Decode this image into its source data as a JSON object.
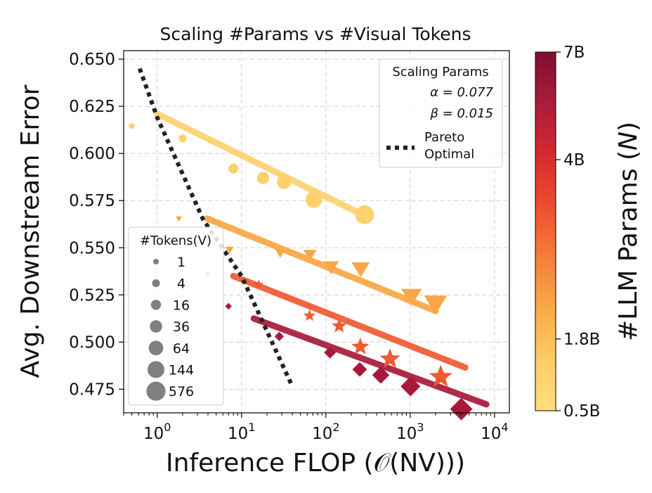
{
  "chart_data": {
    "type": "scatter",
    "title": "Scaling #Params vs #Visual Tokens",
    "xlabel": "Inference FLOP (𝒪(NV)))",
    "ylabel": "Avg. Downstream Error",
    "xscale": "log",
    "xlim": [
      0.4,
      15000
    ],
    "ylim": [
      0.4625,
      0.6545
    ],
    "yticks": [
      0.475,
      0.5,
      0.525,
      0.55,
      0.575,
      0.6,
      0.625,
      0.65
    ],
    "ytick_labels": [
      "0.475",
      "0.500",
      "0.525",
      "0.550",
      "0.575",
      "0.600",
      "0.625",
      "0.650"
    ],
    "xticks": [
      1,
      10,
      100,
      1000,
      10000
    ],
    "xtick_labels": [
      {
        "base": "10",
        "exp": "0"
      },
      {
        "base": "10",
        "exp": "1"
      },
      {
        "base": "10",
        "exp": "2"
      },
      {
        "base": "10",
        "exp": "3"
      },
      {
        "base": "10",
        "exp": "4"
      }
    ],
    "grid": true,
    "series": [
      {
        "name": "0.5B",
        "params_b": 0.5,
        "color": "#FDD16E",
        "marker": "circle",
        "points": [
          [
            0.5,
            0.6145
          ],
          [
            2,
            0.608
          ],
          [
            8,
            0.592
          ],
          [
            18,
            0.587
          ],
          [
            32,
            0.585
          ],
          [
            72,
            0.5755
          ],
          [
            288,
            0.5675
          ]
        ],
        "fit": [
          [
            1.0,
            0.621
          ],
          [
            288,
            0.567
          ]
        ]
      },
      {
        "name": "1.8B",
        "params_b": 1.8,
        "color": "#F9A745",
        "marker": "triangle-down",
        "points": [
          [
            1.8,
            0.5655
          ],
          [
            7.2,
            0.549
          ],
          [
            28.8,
            0.5475
          ],
          [
            64.8,
            0.5465
          ],
          [
            115,
            0.54
          ],
          [
            259,
            0.539
          ],
          [
            1037,
            0.5245
          ],
          [
            2000,
            0.5205
          ]
        ],
        "fit": [
          [
            3.9,
            0.5655
          ],
          [
            2000,
            0.5165
          ]
        ]
      },
      {
        "name": "4B",
        "params_b": 4,
        "color": "#F05A33",
        "marker": "star",
        "points": [
          [
            4,
            0.5365
          ],
          [
            16,
            0.5305
          ],
          [
            64,
            0.514
          ],
          [
            144,
            0.5085
          ],
          [
            256,
            0.4975
          ],
          [
            576,
            0.491
          ],
          [
            2304,
            0.4815
          ]
        ],
        "fit": [
          [
            8,
            0.535
          ],
          [
            4500,
            0.4865
          ]
        ]
      },
      {
        "name": "7B",
        "params_b": 7,
        "color": "#A81A3A",
        "marker": "diamond",
        "points": [
          [
            7,
            0.519
          ],
          [
            28,
            0.503
          ],
          [
            112,
            0.4945
          ],
          [
            252,
            0.4855
          ],
          [
            448,
            0.4825
          ],
          [
            1008,
            0.4765
          ],
          [
            4032,
            0.4645
          ]
        ],
        "fit": [
          [
            14,
            0.5125
          ],
          [
            8000,
            0.467
          ]
        ]
      }
    ],
    "pareto": {
      "label_line1": "Pareto",
      "label_line2": "Optimal",
      "points": [
        [
          0.62,
          0.645
        ],
        [
          1.0,
          0.619
        ],
        [
          3.5,
          0.565
        ],
        [
          10,
          0.535
        ],
        [
          40,
          0.4765
        ]
      ]
    },
    "legend_params": {
      "title": "Scaling Params",
      "alpha": "α = 0.077",
      "beta": "β = 0.015",
      "position": "top-right"
    },
    "legend_tokens": {
      "title": "#Tokens(V)",
      "position": "lower-left",
      "entries": [
        {
          "label": "1",
          "tokens": 1
        },
        {
          "label": "4",
          "tokens": 4
        },
        {
          "label": "16",
          "tokens": 16
        },
        {
          "label": "36",
          "tokens": 36
        },
        {
          "label": "64",
          "tokens": 64
        },
        {
          "label": "144",
          "tokens": 144
        },
        {
          "label": "576",
          "tokens": 576
        }
      ]
    },
    "colorbar": {
      "label": "#LLM Params (N)",
      "label_prefix": "#LLM Params (",
      "label_var": "N",
      "label_suffix": ")",
      "ticks": [
        {
          "label": "7B",
          "frac": 1.0
        },
        {
          "label": "4B",
          "frac": 0.7
        },
        {
          "label": "1.8B",
          "frac": 0.2
        },
        {
          "label": "0.5B",
          "frac": 0.0
        }
      ],
      "colors": [
        "#FFE07E",
        "#FDCB64",
        "#F9A945",
        "#F57D3A",
        "#EE4D2E",
        "#D62A30",
        "#AA1B3C",
        "#800F30"
      ]
    }
  }
}
